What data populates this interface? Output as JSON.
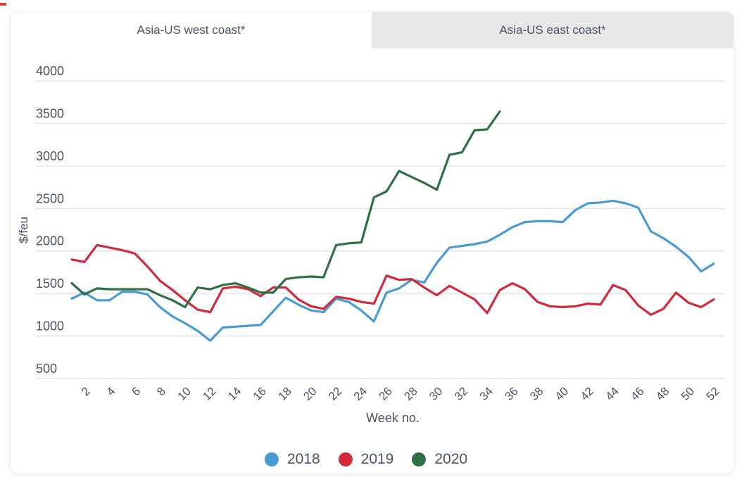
{
  "tabs": [
    {
      "label": "Asia-US west coast*",
      "active": true
    },
    {
      "label": "Asia-US east coast*",
      "active": false
    }
  ],
  "chart_data": {
    "type": "line",
    "title": "",
    "xlabel": "Week no.",
    "ylabel": "$/feu",
    "x_unit": "week",
    "x_start_week": 1,
    "x_end_week": 52,
    "xticks": [
      2,
      4,
      6,
      8,
      10,
      12,
      14,
      16,
      18,
      20,
      22,
      24,
      26,
      28,
      30,
      32,
      34,
      36,
      38,
      40,
      42,
      44,
      46,
      48,
      50,
      52
    ],
    "yticks": [
      500,
      1000,
      1500,
      2000,
      2500,
      3000,
      3500,
      4000
    ],
    "ylim": [
      500,
      4000
    ],
    "grid": "horizontal",
    "legend_position": "bottom",
    "series": [
      {
        "name": "2018",
        "color": "#4a9ad3",
        "values": [
          1440,
          1510,
          1420,
          1420,
          1520,
          1520,
          1490,
          1340,
          1230,
          1150,
          1060,
          945,
          1100,
          1110,
          1120,
          1130,
          1290,
          1450,
          1370,
          1300,
          1280,
          1440,
          1400,
          1300,
          1170,
          1510,
          1560,
          1660,
          1630,
          1860,
          2040,
          2060,
          2080,
          2110,
          2190,
          2280,
          2340,
          2350,
          2350,
          2340,
          2480,
          2560,
          2570,
          2590,
          2560,
          2510,
          2230,
          2150,
          2050,
          1930,
          1760,
          1850
        ]
      },
      {
        "name": "2019",
        "color": "#d02a3c",
        "values": [
          1900,
          1870,
          2070,
          2040,
          2010,
          1970,
          1820,
          1650,
          1540,
          1420,
          1310,
          1280,
          1560,
          1580,
          1550,
          1470,
          1570,
          1570,
          1430,
          1350,
          1320,
          1460,
          1440,
          1400,
          1380,
          1710,
          1660,
          1670,
          1570,
          1480,
          1590,
          1510,
          1430,
          1270,
          1540,
          1620,
          1550,
          1400,
          1350,
          1340,
          1350,
          1380,
          1370,
          1600,
          1540,
          1360,
          1250,
          1320,
          1510,
          1390,
          1340,
          1430
        ]
      },
      {
        "name": "2020",
        "color": "#2e7044",
        "values": [
          1620,
          1490,
          1560,
          1550,
          1550,
          1550,
          1550,
          1480,
          1420,
          1340,
          1570,
          1550,
          1600,
          1620,
          1570,
          1510,
          1510,
          1670,
          1690,
          1700,
          1690,
          2070,
          2090,
          2100,
          2630,
          2700,
          2940,
          2870,
          2800,
          2720,
          3130,
          3160,
          3420,
          3430,
          3640
        ]
      }
    ]
  },
  "colors": {
    "text": "#4b5263",
    "legend_text": "#4a5568",
    "grid": "#e6e6e9",
    "tab_inactive_bg": "#e8e8e9",
    "card_bg": "#ffffff"
  }
}
